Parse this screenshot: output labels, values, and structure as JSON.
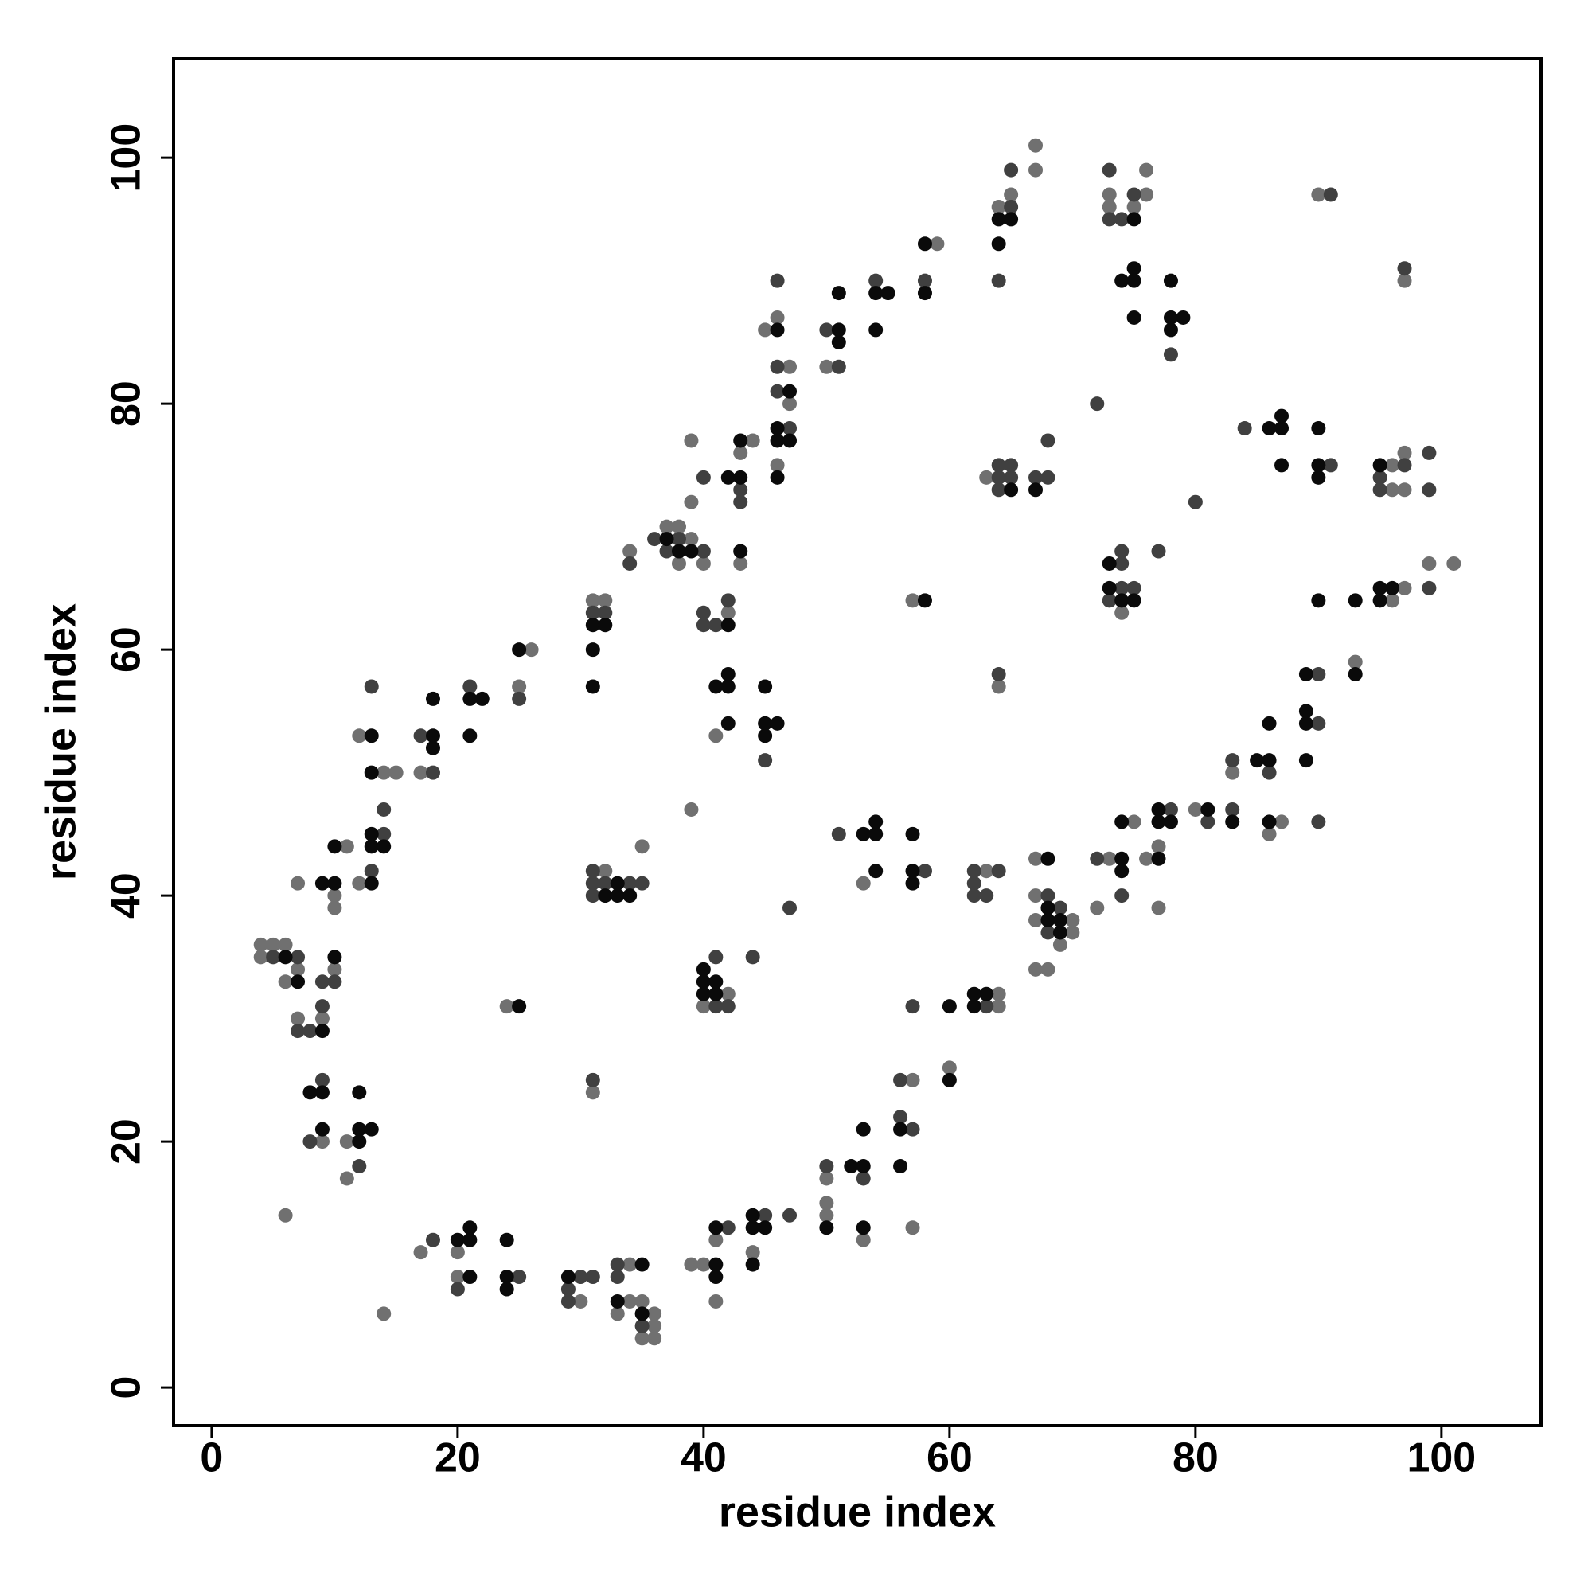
{
  "chart_data": {
    "type": "scatter",
    "x_label": "residue index",
    "y_label": "residue index",
    "xlim": [
      -3.1,
      108.1
    ],
    "ylim": [
      -3.1,
      108.1
    ],
    "xticks": [
      0,
      20,
      40,
      60,
      80,
      100
    ],
    "yticks": [
      0,
      20,
      40,
      60,
      80,
      100
    ],
    "grid": false,
    "series": [
      {
        "color": "#707070",
        "x": [
          4,
          5,
          6,
          4,
          7,
          6,
          7,
          9,
          9,
          11,
          11,
          6,
          10,
          10,
          10,
          11,
          7,
          12,
          14,
          15,
          12,
          14,
          17,
          25,
          26,
          24,
          17,
          20,
          20,
          30,
          34,
          34,
          35,
          33,
          36,
          36,
          35,
          36,
          39,
          40,
          41,
          41,
          44,
          50,
          50,
          50,
          53,
          57,
          57,
          60,
          31,
          32,
          35,
          31,
          32,
          34,
          37,
          38,
          39,
          38,
          40,
          39,
          39,
          42,
          41,
          39,
          42,
          40,
          44,
          43,
          43,
          45,
          46,
          47,
          47,
          46,
          50,
          59,
          53,
          57,
          63,
          64,
          64,
          64,
          64,
          65,
          67,
          67,
          63,
          67,
          67,
          67,
          70,
          70,
          69,
          67,
          68,
          73,
          72,
          75,
          76,
          77,
          77,
          74,
          73,
          73,
          75,
          76,
          76,
          80,
          83,
          86,
          87,
          93,
          90,
          97,
          96,
          97,
          96,
          97,
          97,
          96,
          99,
          101
        ],
        "values": [
          36,
          36,
          36,
          35,
          34,
          33,
          30,
          30,
          20,
          20,
          17,
          14,
          34,
          40,
          39,
          44,
          41,
          41,
          50,
          50,
          53,
          6,
          50,
          57,
          60,
          31,
          11,
          11,
          9,
          7,
          10,
          7,
          7,
          6,
          6,
          5,
          4,
          4,
          10,
          10,
          12,
          7,
          11,
          14,
          15,
          17,
          12,
          25,
          13,
          26,
          24,
          42,
          44,
          64,
          64,
          68,
          70,
          70,
          69,
          67,
          67,
          72,
          77,
          63,
          53,
          47,
          32,
          31,
          77,
          76,
          67,
          86,
          87,
          83,
          80,
          75,
          83,
          93,
          41,
          64,
          42,
          32,
          31,
          57,
          96,
          97,
          101,
          99,
          74,
          43,
          40,
          38,
          38,
          37,
          36,
          34,
          34,
          43,
          39,
          46,
          43,
          44,
          39,
          63,
          97,
          96,
          96,
          97,
          99,
          47,
          50,
          45,
          46,
          59,
          97,
          90,
          75,
          76,
          73,
          73,
          65,
          64,
          67,
          67
        ]
      },
      {
        "color": "#404040",
        "x": [
          5,
          7,
          9,
          10,
          7,
          8,
          9,
          9,
          8,
          12,
          13,
          14,
          14,
          13,
          17,
          18,
          21,
          25,
          18,
          20,
          25,
          30,
          31,
          29,
          29,
          33,
          33,
          35,
          42,
          45,
          47,
          50,
          53,
          56,
          57,
          56,
          57,
          31,
          31,
          31,
          32,
          34,
          35,
          31,
          31,
          32,
          34,
          36,
          38,
          37,
          40,
          40,
          40,
          40,
          41,
          42,
          45,
          41,
          41,
          42,
          44,
          47,
          43,
          43,
          46,
          46,
          46,
          47,
          50,
          51,
          54,
          58,
          51,
          58,
          62,
          64,
          62,
          62,
          63,
          63,
          64,
          65,
          65,
          64,
          64,
          65,
          64,
          65,
          64,
          67,
          68,
          68,
          72,
          68,
          69,
          68,
          72,
          74,
          74,
          74,
          74,
          75,
          73,
          77,
          73,
          75,
          73,
          74,
          78,
          78,
          81,
          83,
          83,
          86,
          80,
          84,
          91,
          90,
          90,
          90,
          91,
          97,
          97,
          99,
          95,
          95,
          99,
          99
        ],
        "values": [
          35,
          35,
          33,
          33,
          29,
          29,
          31,
          25,
          20,
          18,
          42,
          45,
          47,
          57,
          53,
          50,
          57,
          56,
          12,
          8,
          9,
          9,
          9,
          8,
          7,
          10,
          9,
          5,
          13,
          14,
          14,
          18,
          17,
          22,
          21,
          25,
          31,
          25,
          42,
          41,
          41,
          41,
          41,
          40,
          63,
          63,
          67,
          69,
          69,
          68,
          68,
          74,
          63,
          62,
          62,
          64,
          51,
          35,
          31,
          31,
          35,
          39,
          73,
          72,
          90,
          83,
          81,
          78,
          86,
          83,
          90,
          90,
          45,
          42,
          42,
          42,
          41,
          40,
          40,
          31,
          58,
          96,
          99,
          90,
          75,
          75,
          74,
          74,
          73,
          74,
          74,
          77,
          80,
          40,
          39,
          37,
          43,
          40,
          68,
          67,
          65,
          65,
          64,
          68,
          99,
          97,
          95,
          95,
          84,
          47,
          46,
          47,
          51,
          50,
          72,
          78,
          75,
          58,
          54,
          46,
          97,
          91,
          75,
          76,
          74,
          73,
          73,
          65
        ]
      },
      {
        "color": "#0a0a0a",
        "x": [
          6,
          7,
          9,
          8,
          9,
          9,
          12,
          12,
          12,
          13,
          10,
          9,
          10,
          10,
          13,
          13,
          14,
          13,
          13,
          13,
          18,
          18,
          18,
          21,
          22,
          21,
          25,
          25,
          20,
          21,
          21,
          21,
          24,
          24,
          24,
          29,
          35,
          33,
          35,
          41,
          41,
          41,
          44,
          44,
          45,
          44,
          50,
          52,
          53,
          53,
          53,
          56,
          56,
          60,
          60,
          33,
          32,
          33,
          34,
          31,
          32,
          31,
          31,
          37,
          38,
          39,
          42,
          41,
          42,
          42,
          42,
          45,
          45,
          46,
          45,
          40,
          40,
          41,
          40,
          41,
          42,
          43,
          43,
          43,
          46,
          47,
          46,
          46,
          47,
          46,
          51,
          51,
          51,
          54,
          55,
          54,
          58,
          58,
          53,
          54,
          54,
          54,
          57,
          57,
          57,
          58,
          62,
          63,
          62,
          64,
          65,
          64,
          65,
          67,
          68,
          68,
          68,
          69,
          69,
          74,
          74,
          74,
          77,
          73,
          73,
          74,
          75,
          75,
          74,
          75,
          75,
          75,
          78,
          78,
          79,
          78,
          77,
          77,
          78,
          81,
          83,
          85,
          86,
          86,
          86,
          86,
          87,
          87,
          87,
          90,
          90,
          90,
          89,
          89,
          89,
          89,
          93,
          90,
          93,
          95,
          95,
          96,
          95
        ],
        "values": [
          35,
          33,
          29,
          24,
          24,
          21,
          24,
          21,
          20,
          21,
          35,
          41,
          41,
          44,
          41,
          44,
          44,
          45,
          50,
          53,
          53,
          52,
          56,
          56,
          56,
          53,
          60,
          31,
          12,
          12,
          13,
          9,
          12,
          9,
          8,
          9,
          10,
          7,
          6,
          10,
          9,
          13,
          14,
          13,
          13,
          10,
          13,
          18,
          18,
          21,
          13,
          18,
          21,
          31,
          25,
          41,
          40,
          40,
          40,
          62,
          62,
          60,
          57,
          69,
          68,
          68,
          62,
          57,
          57,
          58,
          54,
          57,
          54,
          54,
          53,
          34,
          33,
          33,
          32,
          32,
          74,
          74,
          77,
          68,
          86,
          81,
          78,
          77,
          77,
          74,
          86,
          85,
          89,
          89,
          89,
          86,
          93,
          89,
          45,
          45,
          46,
          42,
          45,
          42,
          41,
          64,
          32,
          32,
          31,
          95,
          95,
          93,
          73,
          73,
          43,
          39,
          38,
          38,
          37,
          43,
          42,
          46,
          43,
          67,
          65,
          64,
          64,
          95,
          90,
          90,
          91,
          87,
          90,
          87,
          87,
          86,
          47,
          46,
          46,
          47,
          46,
          51,
          51,
          54,
          46,
          78,
          78,
          79,
          75,
          78,
          75,
          74,
          58,
          55,
          54,
          51,
          58,
          64,
          64,
          75,
          65,
          65,
          64
        ]
      }
    ]
  }
}
